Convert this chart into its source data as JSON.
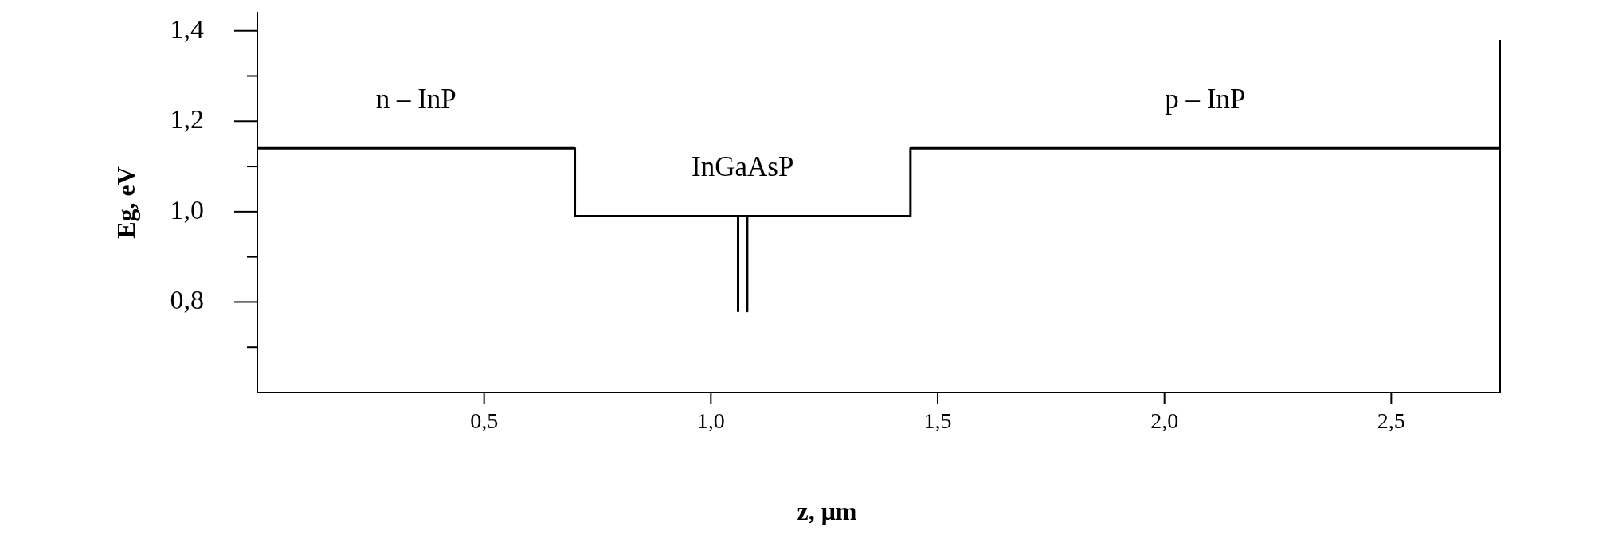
{
  "chart_data": {
    "type": "step",
    "xlabel": "z, μm",
    "ylabel": "Eg, eV",
    "xlim": [
      0,
      2.74
    ],
    "ylim": [
      0.6,
      1.44
    ],
    "xticks": [
      {
        "value": 0.5,
        "label": "0,5"
      },
      {
        "value": 1.0,
        "label": "1,0"
      },
      {
        "value": 1.5,
        "label": "1,5"
      },
      {
        "value": 2.0,
        "label": "2,0"
      },
      {
        "value": 2.5,
        "label": "2,5"
      }
    ],
    "yticks": [
      {
        "value": 0.7,
        "label": null
      },
      {
        "value": 0.8,
        "label": "0,8"
      },
      {
        "value": 0.9,
        "label": null
      },
      {
        "value": 1.0,
        "label": "1,0"
      },
      {
        "value": 1.1,
        "label": null
      },
      {
        "value": 1.2,
        "label": "1,2"
      },
      {
        "value": 1.3,
        "label": null
      },
      {
        "value": 1.4,
        "label": "1,4"
      }
    ],
    "series": [
      {
        "color": "#000000",
        "x": [
          0,
          0.7,
          1.44,
          2.74
        ],
        "values": [
          1.14,
          0.99,
          1.14,
          1.14
        ]
      },
      {
        "type": "line",
        "color": "#000000",
        "x": [
          1.06,
          1.06
        ],
        "values": [
          0.99,
          0.78
        ]
      },
      {
        "type": "line",
        "color": "#000000",
        "x": [
          1.08,
          1.08
        ],
        "values": [
          0.99,
          0.78
        ]
      }
    ],
    "annotations": [
      "n – InP",
      "InGaAsP",
      "p – InP"
    ]
  }
}
